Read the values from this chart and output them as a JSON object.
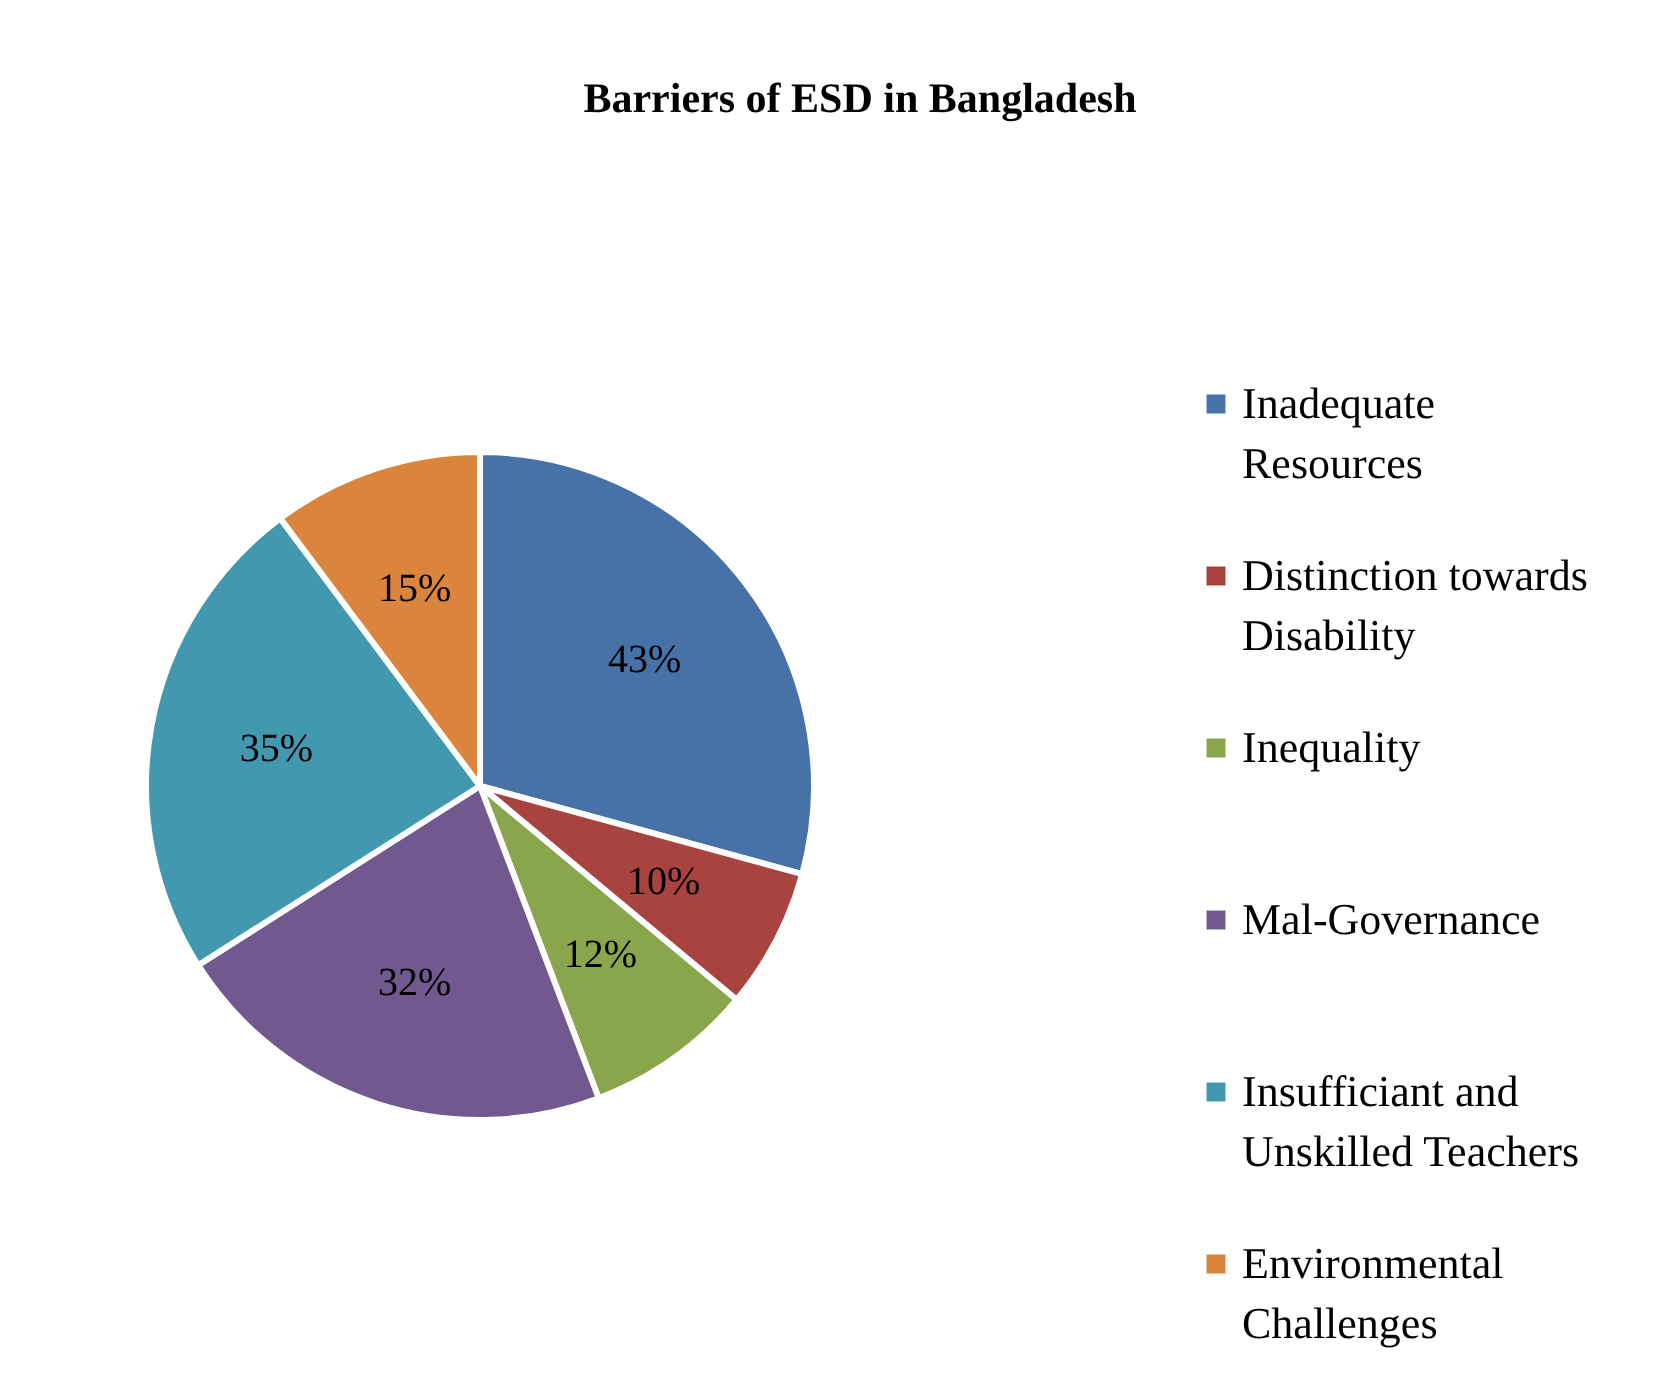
{
  "chart_data": {
    "type": "pie",
    "title": "Barriers of ESD in Bangladesh",
    "categories": [
      "Inadequate Resources",
      "Distinction towards Disability",
      "Inequality",
      "Mal-Governance",
      "Insufficiant and Unskilled Teachers",
      "Environmental Challenges"
    ],
    "values": [
      43,
      10,
      12,
      32,
      35,
      15
    ],
    "colors": [
      "#4672a8",
      "#a84340",
      "#89a64c",
      "#71588f",
      "#4198af",
      "#db843d"
    ],
    "value_labels": [
      "43%",
      "10%",
      "12%",
      "32%",
      "35%",
      "15%"
    ],
    "legend": "right"
  }
}
